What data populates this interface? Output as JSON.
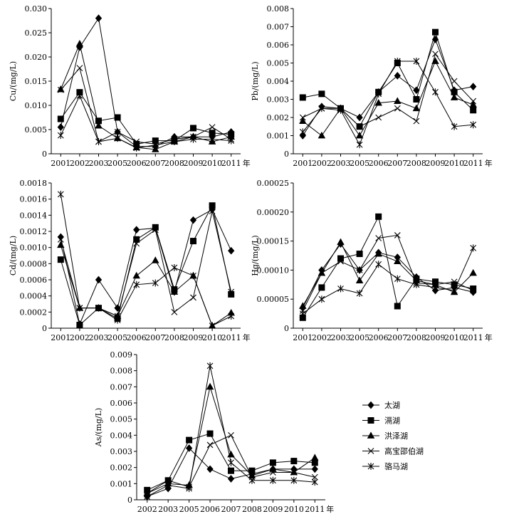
{
  "legend": {
    "items": [
      {
        "name": "太湖",
        "marker": "diamond"
      },
      {
        "name": "滆湖",
        "marker": "square"
      },
      {
        "name": "洪泽湖",
        "marker": "triangle"
      },
      {
        "name": "高宝邵伯湖",
        "marker": "x"
      },
      {
        "name": "骆马湖",
        "marker": "star"
      }
    ]
  },
  "chart_data": [
    {
      "type": "line",
      "ylabel": "Cu/(mg/L)",
      "categories": [
        "2001",
        "2002",
        "2003",
        "2005",
        "2006",
        "2007",
        "2008",
        "2009",
        "2010",
        "2011"
      ],
      "x_suffix": "年",
      "ylim": [
        0,
        0.03
      ],
      "yticks": [
        "0",
        "0.005",
        "0.010",
        "0.015",
        "0.020",
        "0.025",
        "0.030"
      ],
      "series": [
        {
          "name": "太湖",
          "values": [
            0.0055,
            0.022,
            0.028,
            0.0045,
            0.0015,
            0.0015,
            0.0035,
            0.0035,
            0.0035,
            0.0045
          ]
        },
        {
          "name": "滆湖",
          "values": [
            0.0072,
            0.0127,
            0.0068,
            0.0075,
            0.002,
            0.0027,
            0.0027,
            0.0053,
            0.0043,
            0.004
          ]
        },
        {
          "name": "洪泽湖",
          "values": [
            0.0133,
            0.0227,
            0.0058,
            0.0032,
            0.0013,
            0.0009,
            0.0025,
            0.0035,
            0.0025,
            0.0035
          ]
        },
        {
          "name": "高宝邵伯湖",
          "values": [
            0.0132,
            0.0177,
            0.0025,
            0.0045,
            0.0025,
            0.002,
            0.003,
            0.0035,
            0.0055,
            0.003
          ]
        },
        {
          "name": "骆马湖",
          "values": [
            0.0038,
            0.012,
            0.0025,
            0.0032,
            0.0012,
            0.0018,
            0.0025,
            0.003,
            0.003,
            0.0027
          ]
        }
      ]
    },
    {
      "type": "line",
      "ylabel": "Pb/(mg/L)",
      "categories": [
        "2001",
        "2002",
        "2003",
        "2005",
        "2006",
        "2007",
        "2008",
        "2009",
        "2010",
        "2011"
      ],
      "x_suffix": "年",
      "ylim": [
        0,
        0.008
      ],
      "yticks": [
        "0",
        "0.001",
        "0.002",
        "0.003",
        "0.004",
        "0.005",
        "0.006",
        "0.007",
        "0.008"
      ],
      "series": [
        {
          "name": "太湖",
          "values": [
            0.001,
            0.0026,
            0.0025,
            0.002,
            0.0034,
            0.0043,
            0.0035,
            0.0063,
            0.0035,
            0.0037
          ]
        },
        {
          "name": "滆湖",
          "values": [
            0.0031,
            0.0033,
            0.0025,
            0.0015,
            0.0034,
            0.005,
            0.003,
            0.0067,
            0.0034,
            0.0024
          ]
        },
        {
          "name": "洪泽湖",
          "values": [
            0.0018,
            0.001,
            0.0025,
            0.001,
            0.0028,
            0.0029,
            0.0025,
            0.0051,
            0.0031,
            0.0027
          ]
        },
        {
          "name": "高宝邵伯湖",
          "values": [
            0.002,
            0.0025,
            0.0025,
            0.0015,
            0.002,
            0.0025,
            0.0018,
            0.0055,
            0.004,
            0.0029
          ]
        },
        {
          "name": "骆马湖",
          "values": [
            0.0012,
            0.0025,
            0.0024,
            0.0005,
            0.0033,
            0.0051,
            0.0051,
            0.0034,
            0.0015,
            0.0016
          ]
        }
      ]
    },
    {
      "type": "line",
      "ylabel": "Cd/(mg/L)",
      "categories": [
        "2001",
        "2002",
        "2003",
        "2005",
        "2006",
        "2007",
        "2008",
        "2009",
        "2010",
        "2011"
      ],
      "x_suffix": "年",
      "ylim": [
        0,
        0.0018
      ],
      "yticks": [
        "0",
        "0.0002",
        "0.0004",
        "0.0006",
        "0.0008",
        "0.0010",
        "0.0012",
        "0.0014",
        "0.0016",
        "0.0018"
      ],
      "series": [
        {
          "name": "太湖",
          "values": [
            0.00113,
            5e-05,
            0.0006,
            0.00025,
            0.00122,
            0.00124,
            0.00045,
            0.00134,
            0.00147,
            0.00096
          ]
        },
        {
          "name": "滆湖",
          "values": [
            0.00085,
            4e-05,
            0.00025,
            0.00012,
            0.0011,
            0.00125,
            0.00048,
            0.00108,
            0.00152,
            0.00042
          ]
        },
        {
          "name": "洪泽湖",
          "values": [
            0.00103,
            0.00025,
            0.00025,
            0.00015,
            0.00065,
            0.00084,
            0.00045,
            0.00065,
            3e-05,
            0.00019
          ]
        },
        {
          "name": "高宝邵伯湖",
          "values": [
            0.0011,
            0.00025,
            0.00025,
            0.00015,
            0.00105,
            0.00122,
            0.0002,
            0.00038,
            0.00145,
            0.00045
          ]
        },
        {
          "name": "骆马湖",
          "values": [
            0.00166,
            0.00025,
            0.00025,
            0.0001,
            0.00054,
            0.00056,
            0.00075,
            0.00065,
            3e-05,
            0.00015
          ]
        }
      ]
    },
    {
      "type": "line",
      "ylabel": "Hg/(mg/L)",
      "categories": [
        "2001",
        "2002",
        "2003",
        "2005",
        "2006",
        "2007",
        "2008",
        "2009",
        "2010",
        "2011"
      ],
      "x_suffix": "年",
      "ylim": [
        0,
        0.00025
      ],
      "yticks": [
        "0",
        "0.00005",
        "0.00010",
        "0.00015",
        "0.00020",
        "0.00025"
      ],
      "series": [
        {
          "name": "太湖",
          "values": [
            3.5e-05,
            0.0001,
            0.000145,
            0.0001,
            0.00013,
            0.000122,
            8.8e-05,
            6.5e-05,
            7e-05,
            6.2e-05
          ]
        },
        {
          "name": "滆湖",
          "values": [
            1.8e-05,
            7e-05,
            0.00012,
            0.000128,
            0.000192,
            3.8e-05,
            8.5e-05,
            8e-05,
            7.5e-05,
            6.8e-05
          ]
        },
        {
          "name": "洪泽湖",
          "values": [
            3.8e-05,
            9.5e-05,
            0.000148,
            8.2e-05,
            0.000128,
            0.000115,
            8.2e-05,
            7.5e-05,
            6.2e-05,
            9.5e-05
          ]
        },
        {
          "name": "高宝邵伯湖",
          "values": [
            3e-05,
            9.5e-05,
            0.000115,
            0.0001,
            0.000155,
            0.00016,
            7.8e-05,
            7.5e-05,
            8e-05,
            6.5e-05
          ]
        },
        {
          "name": "骆马湖",
          "values": [
            2.5e-05,
            5e-05,
            6.8e-05,
            6e-05,
            0.00011,
            8.5e-05,
            7.5e-05,
            7e-05,
            6.5e-05,
            0.000138
          ]
        }
      ]
    },
    {
      "type": "line",
      "ylabel": "As/(mg/L)",
      "categories": [
        "2002",
        "2003",
        "2005",
        "2006",
        "2007",
        "2008",
        "2009",
        "2010",
        "2011"
      ],
      "x_suffix": "年",
      "ylim": [
        0,
        0.009
      ],
      "yticks": [
        "0",
        "0.001",
        "0.002",
        "0.003",
        "0.004",
        "0.005",
        "0.006",
        "0.007",
        "0.008",
        "0.009"
      ],
      "series": [
        {
          "name": "太湖",
          "values": [
            0.0002,
            0.0007,
            0.0032,
            0.0019,
            0.0013,
            0.0016,
            0.0019,
            0.0019,
            0.0019
          ]
        },
        {
          "name": "滆湖",
          "values": [
            0.0006,
            0.0012,
            0.0037,
            0.0041,
            0.0018,
            0.0018,
            0.0023,
            0.0024,
            0.0023
          ]
        },
        {
          "name": "洪泽湖",
          "values": [
            0.0004,
            0.001,
            0.0009,
            0.007,
            0.0028,
            0.0015,
            0.0019,
            0.0017,
            0.0026
          ]
        },
        {
          "name": "高宝邵伯湖",
          "values": [
            0.0004,
            0.0012,
            0.0008,
            0.0034,
            0.004,
            0.0014,
            0.0017,
            0.0017,
            0.0014
          ]
        },
        {
          "name": "骆马湖",
          "values": [
            0.0002,
            0.0009,
            0.0007,
            0.0083,
            0.0023,
            0.0012,
            0.0012,
            0.0012,
            0.0011
          ]
        }
      ]
    }
  ]
}
